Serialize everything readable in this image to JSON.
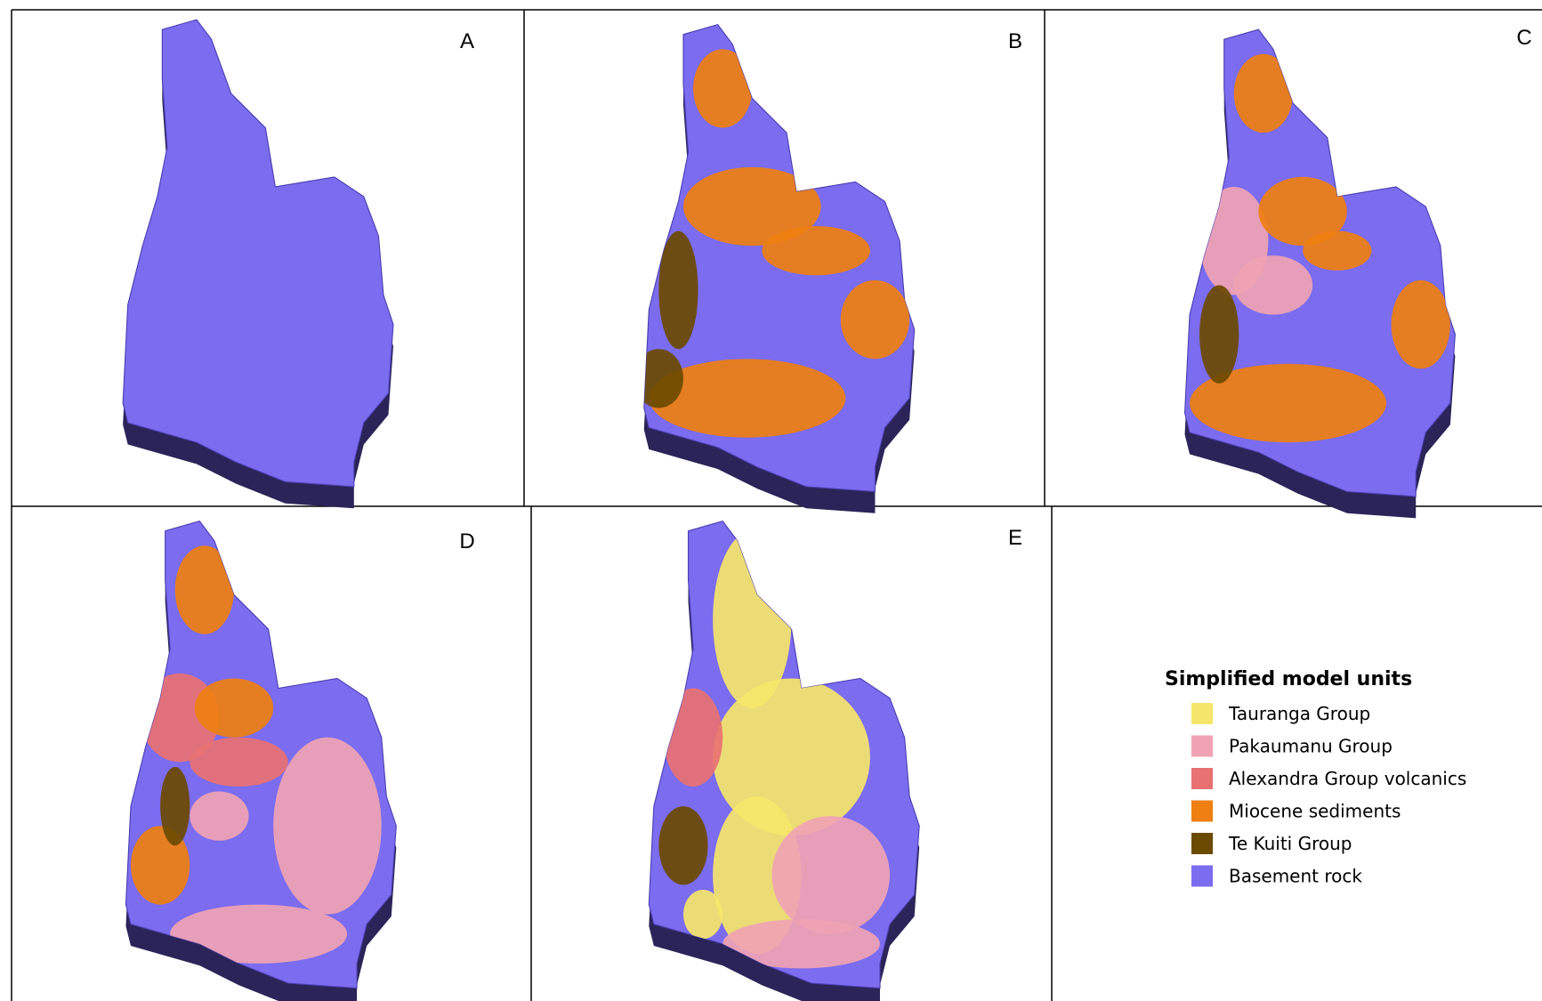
{
  "panels": [
    {
      "label": "A"
    },
    {
      "label": "B"
    },
    {
      "label": "C"
    },
    {
      "label": "D"
    },
    {
      "label": "E"
    }
  ],
  "legend": {
    "title": "Simplified model units",
    "items": [
      {
        "label": "Tauranga Group",
        "color": "#f5e66b"
      },
      {
        "label": "Pakaumanu Group",
        "color": "#f0a3b3"
      },
      {
        "label": "Alexandra Group volcanics",
        "color": "#e87272"
      },
      {
        "label": "Miocene sediments",
        "color": "#ee7f10"
      },
      {
        "label": "Te Kuiti Group",
        "color": "#6b4a00"
      },
      {
        "label": "Basement rock",
        "color": "#7b6cf0"
      }
    ]
  }
}
